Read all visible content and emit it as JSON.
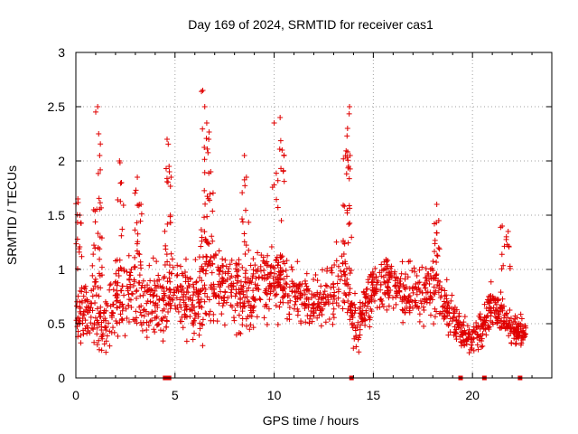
{
  "chart_data": {
    "type": "scatter",
    "title": "Day 169 of 2024, SRMTID for receiver cas1",
    "xlabel": "GPS time / hours",
    "ylabel": "SRMTID / TECUs",
    "xlim": [
      0,
      24
    ],
    "ylim": [
      0,
      3
    ],
    "x_ticks": [
      0,
      5,
      10,
      15,
      20
    ],
    "y_ticks": [
      0,
      0.5,
      1,
      1.5,
      2,
      2.5,
      3
    ],
    "x_tick_labels": [
      "0",
      "5",
      "10",
      "15",
      "20"
    ],
    "y_tick_labels": [
      "0",
      "0.5",
      "1",
      "1.5",
      "2",
      "2.5",
      "3"
    ],
    "grid": true,
    "marker": "+",
    "color": "#e00000",
    "data_span_hours": [
      0,
      22.7
    ],
    "points_per_hour": 75,
    "envelope": [
      {
        "x": 0.0,
        "mean": 0.55,
        "spread": 0.35
      },
      {
        "x": 0.5,
        "mean": 0.65,
        "spread": 0.4
      },
      {
        "x": 1.0,
        "mean": 0.7,
        "spread": 0.55
      },
      {
        "x": 1.5,
        "mean": 0.45,
        "spread": 0.4
      },
      {
        "x": 2.0,
        "mean": 0.75,
        "spread": 0.5
      },
      {
        "x": 3.0,
        "mean": 0.8,
        "spread": 0.55
      },
      {
        "x": 4.0,
        "mean": 0.7,
        "spread": 0.45
      },
      {
        "x": 5.0,
        "mean": 0.75,
        "spread": 0.55
      },
      {
        "x": 6.0,
        "mean": 0.7,
        "spread": 0.5
      },
      {
        "x": 6.6,
        "mean": 0.95,
        "spread": 0.8
      },
      {
        "x": 7.5,
        "mean": 0.85,
        "spread": 0.45
      },
      {
        "x": 8.5,
        "mean": 0.75,
        "spread": 0.5
      },
      {
        "x": 9.5,
        "mean": 0.9,
        "spread": 0.5
      },
      {
        "x": 10.5,
        "mean": 0.85,
        "spread": 0.5
      },
      {
        "x": 11.5,
        "mean": 0.7,
        "spread": 0.35
      },
      {
        "x": 12.5,
        "mean": 0.7,
        "spread": 0.35
      },
      {
        "x": 13.5,
        "mean": 0.95,
        "spread": 0.55
      },
      {
        "x": 14.2,
        "mean": 0.45,
        "spread": 0.3
      },
      {
        "x": 15.0,
        "mean": 0.85,
        "spread": 0.35
      },
      {
        "x": 16.0,
        "mean": 0.85,
        "spread": 0.35
      },
      {
        "x": 17.0,
        "mean": 0.75,
        "spread": 0.35
      },
      {
        "x": 18.0,
        "mean": 0.85,
        "spread": 0.4
      },
      {
        "x": 19.0,
        "mean": 0.55,
        "spread": 0.25
      },
      {
        "x": 19.8,
        "mean": 0.35,
        "spread": 0.2
      },
      {
        "x": 20.5,
        "mean": 0.45,
        "spread": 0.25
      },
      {
        "x": 21.0,
        "mean": 0.7,
        "spread": 0.3
      },
      {
        "x": 22.0,
        "mean": 0.45,
        "spread": 0.2
      },
      {
        "x": 22.7,
        "mean": 0.4,
        "spread": 0.2
      }
    ],
    "peaks": [
      {
        "x": 0.1,
        "y": 1.65
      },
      {
        "x": 0.2,
        "y": 1.5
      },
      {
        "x": 0.9,
        "y": 1.55
      },
      {
        "x": 1.1,
        "y": 2.5
      },
      {
        "x": 1.15,
        "y": 2.25
      },
      {
        "x": 1.2,
        "y": 2.05
      },
      {
        "x": 2.2,
        "y": 2.0
      },
      {
        "x": 2.3,
        "y": 1.8
      },
      {
        "x": 3.1,
        "y": 1.85
      },
      {
        "x": 3.2,
        "y": 1.6
      },
      {
        "x": 4.6,
        "y": 2.2
      },
      {
        "x": 4.7,
        "y": 1.95
      },
      {
        "x": 4.8,
        "y": 1.85
      },
      {
        "x": 6.4,
        "y": 2.65
      },
      {
        "x": 6.5,
        "y": 2.5
      },
      {
        "x": 6.6,
        "y": 2.35
      },
      {
        "x": 6.7,
        "y": 2.2
      },
      {
        "x": 6.8,
        "y": 1.9
      },
      {
        "x": 8.5,
        "y": 2.05
      },
      {
        "x": 8.6,
        "y": 1.85
      },
      {
        "x": 10.0,
        "y": 2.35
      },
      {
        "x": 10.3,
        "y": 2.4
      },
      {
        "x": 10.4,
        "y": 2.1
      },
      {
        "x": 13.8,
        "y": 2.5
      },
      {
        "x": 13.7,
        "y": 2.3
      },
      {
        "x": 13.6,
        "y": 2.05
      },
      {
        "x": 13.75,
        "y": 1.95
      },
      {
        "x": 18.2,
        "y": 1.6
      },
      {
        "x": 18.3,
        "y": 1.45
      },
      {
        "x": 21.5,
        "y": 1.4
      },
      {
        "x": 21.8,
        "y": 1.35
      }
    ],
    "zero_markers": [
      4.5,
      4.7,
      13.9,
      19.4,
      20.6,
      22.4
    ]
  }
}
